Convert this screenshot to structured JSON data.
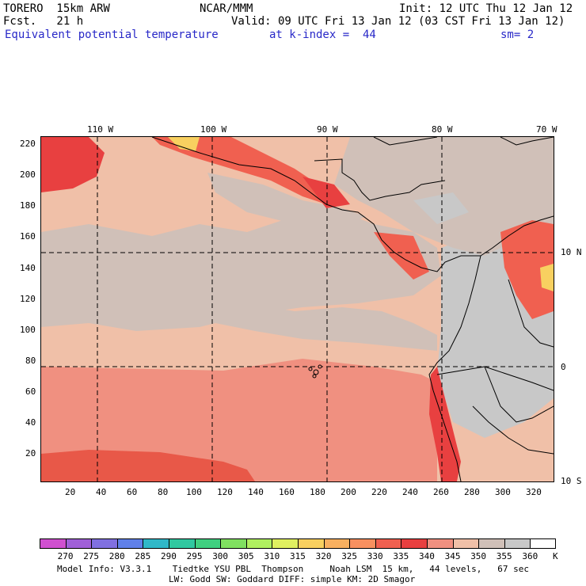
{
  "header": {
    "model": "TORERO  15km ARW",
    "org": "NCAR/MMM",
    "init": "Init: 12 UTC Thu 12 Jan 12",
    "fcst": "Fcst.   21 h",
    "valid": "Valid: 09 UTC Fri 13 Jan 12 (03 CST Fri 13 Jan 12)",
    "field": "Equivalent potential temperature",
    "level": "at k-index =  44",
    "smooth": "sm= 2"
  },
  "top_labels": [
    "110 W",
    "100 W",
    "90 W",
    "80 W",
    "70 W"
  ],
  "left_labels": [
    "220",
    "200",
    "180",
    "160",
    "140",
    "120",
    "100",
    "80",
    "60",
    "40",
    "20"
  ],
  "bottom_labels": [
    "20",
    "40",
    "60",
    "80",
    "100",
    "120",
    "140",
    "160",
    "180",
    "200",
    "220",
    "240",
    "260",
    "280",
    "300",
    "320"
  ],
  "right_labels": [
    "10 N",
    "0",
    "10 S"
  ],
  "colorbar": {
    "labels": [
      "270",
      "275",
      "280",
      "285",
      "290",
      "295",
      "300",
      "305",
      "310",
      "315",
      "320",
      "325",
      "330",
      "335",
      "340",
      "345",
      "350",
      "355",
      "360"
    ],
    "unit": "K",
    "colors": [
      "#d050d0",
      "#a060d8",
      "#8070e0",
      "#6080e8",
      "#30b8c8",
      "#30c8a0",
      "#40d080",
      "#80e060",
      "#b0f060",
      "#e0f060",
      "#f8d060",
      "#f8b060",
      "#f89060",
      "#f06050",
      "#e84040",
      "#f09080",
      "#f0c0a8",
      "#d0c0b8",
      "#c8c8c8",
      "#ffffff"
    ]
  },
  "footer": {
    "line1": "Model Info: V3.3.1    Tiedtke YSU PBL  Thompson     Noah LSM  15 km,   44 levels,   67 sec",
    "line2": "LW: Godd SW: Goddard DIFF: simple KM: 2D Smagor"
  }
}
